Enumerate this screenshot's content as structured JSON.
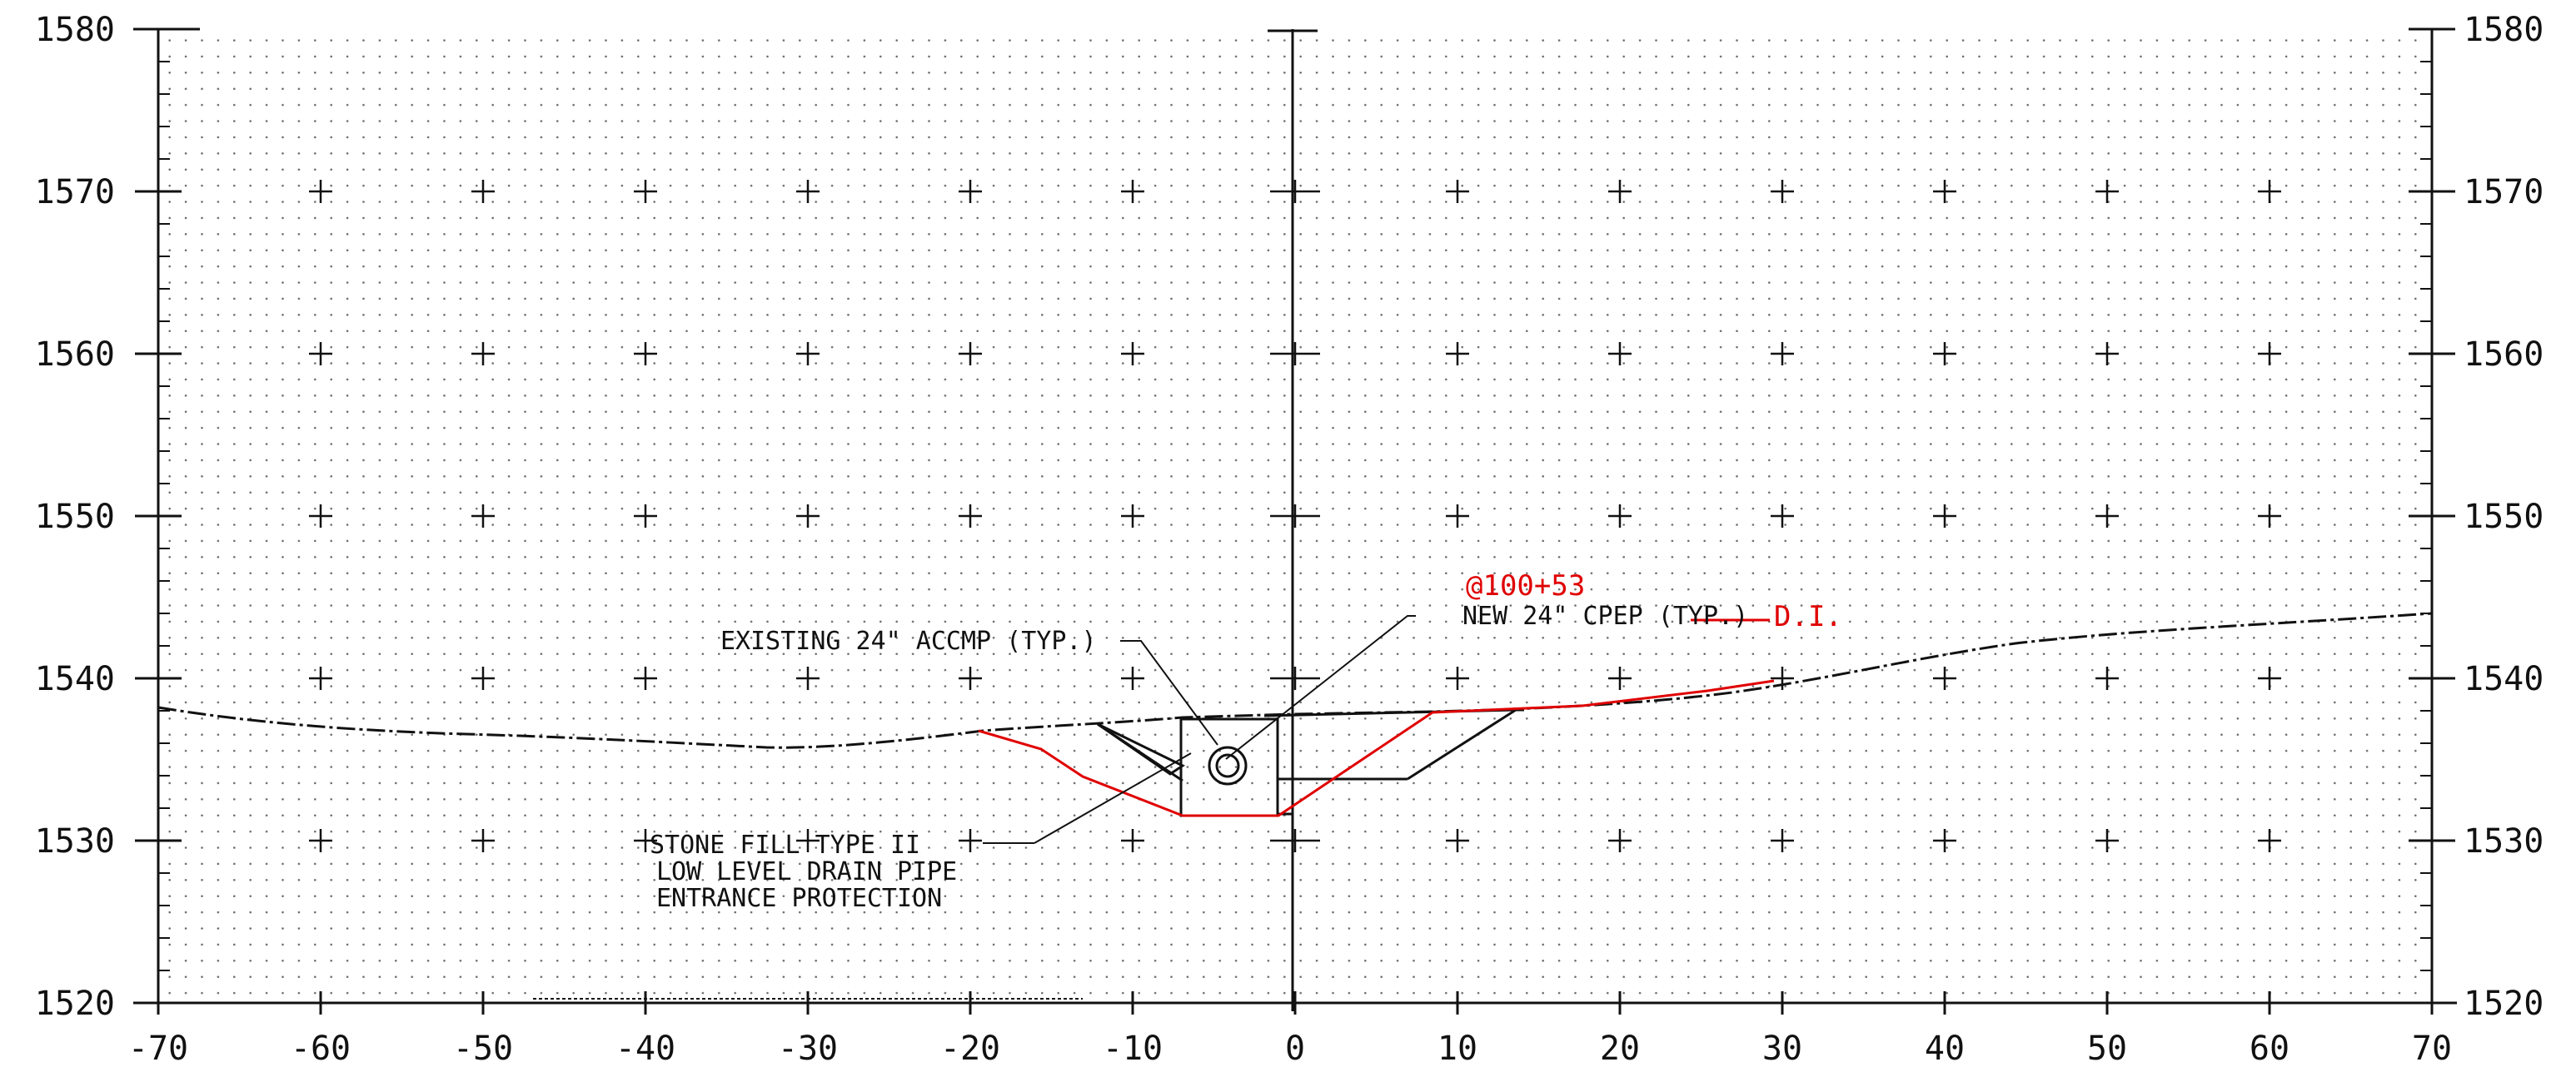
{
  "colors": {
    "ink": "#111111",
    "grid_dot": "#6a6a6a",
    "markup_red": "#e00000"
  },
  "axes": {
    "x_ticks": [
      "-70",
      "-60",
      "-50",
      "-40",
      "-30",
      "-20",
      "-10",
      "0",
      "10",
      "20",
      "30",
      "40",
      "50",
      "60",
      "70"
    ],
    "y_ticks_left": [
      "1580",
      "1570",
      "1560",
      "1550",
      "1540",
      "1530",
      "1520"
    ],
    "y_ticks_right": [
      "1580",
      "1570",
      "1560",
      "1550",
      "1540",
      "1530",
      "1520"
    ]
  },
  "annotations": {
    "existing_pipe": "EXISTING 24\" ACCMP (TYP.)",
    "new_pipe": "NEW 24\" CPEP (TYP.)",
    "stone_fill_1": "STONE FILL TYPE II",
    "stone_fill_2": "LOW LEVEL DRAIN PIPE",
    "stone_fill_3": "ENTRANCE PROTECTION"
  },
  "markups": {
    "station": "@100+53",
    "di": "D.I."
  }
}
